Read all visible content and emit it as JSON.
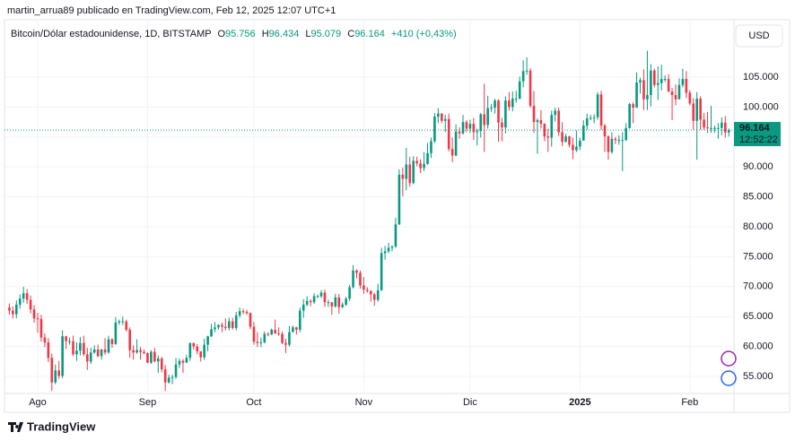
{
  "chart_data": {
    "type": "candlestick",
    "title": "martin_arrua89 publicado en TradingView.com, Feb 12, 2025 12:07 UTC+1",
    "symbol": "Bitcoin/Dólar estadounidense, 1D, BITSTAMP",
    "legend_keys": [
      "O",
      "H",
      "L",
      "C"
    ],
    "legend_values": [
      "95.756",
      "96.434",
      "95.079",
      "96.164",
      "+410 (+0,43%)"
    ],
    "currency": "USD",
    "countdown": "12:52:22",
    "brand": "TradingView",
    "up_color": "#089981",
    "down_color": "#f23645",
    "grid": true,
    "categories": [
      null,
      null,
      null,
      null,
      null,
      null,
      null,
      null,
      "Ago",
      null,
      null,
      null,
      null,
      null,
      null,
      null,
      null,
      null,
      null,
      null,
      null,
      null,
      null,
      null,
      null,
      null,
      null,
      null,
      null,
      null,
      null,
      null,
      null,
      null,
      null,
      null,
      null,
      null,
      null,
      "Sep",
      null,
      null,
      null,
      null,
      null,
      null,
      null,
      null,
      null,
      null,
      null,
      null,
      null,
      null,
      null,
      null,
      null,
      null,
      null,
      null,
      null,
      null,
      null,
      null,
      null,
      null,
      null,
      null,
      null,
      "Oct",
      null,
      null,
      null,
      null,
      null,
      null,
      null,
      null,
      null,
      null,
      null,
      null,
      null,
      null,
      null,
      null,
      null,
      null,
      null,
      null,
      null,
      null,
      null,
      null,
      null,
      null,
      null,
      null,
      null,
      null,
      "Nov",
      null,
      null,
      null,
      null,
      null,
      null,
      null,
      null,
      null,
      null,
      null,
      null,
      null,
      null,
      null,
      null,
      null,
      null,
      null,
      null,
      null,
      null,
      null,
      null,
      null,
      null,
      null,
      null,
      null,
      "Dic",
      null,
      null,
      null,
      null,
      null,
      null,
      null,
      null,
      null,
      null,
      null,
      null,
      null,
      null,
      null,
      null,
      null,
      null,
      null,
      null,
      null,
      null,
      null,
      null,
      null,
      null,
      null,
      null,
      null,
      null,
      "2025",
      null,
      null,
      null,
      null,
      null,
      null,
      null,
      null,
      null,
      null,
      null,
      null,
      null,
      null,
      null,
      null,
      null,
      null,
      null,
      null,
      null,
      null,
      null,
      null,
      null,
      null,
      null,
      null,
      null,
      null,
      "Feb",
      null,
      null,
      null,
      null,
      null,
      null,
      null,
      null,
      null,
      null,
      null
    ],
    "open": [
      66500,
      66000,
      65400,
      67000,
      68000,
      68900,
      67800,
      66200,
      64700,
      64600,
      61500,
      60700,
      58100,
      54000,
      56000,
      55100,
      61700,
      60900,
      60900,
      58700,
      59300,
      60600,
      58700,
      57500,
      59000,
      59500,
      58400,
      59500,
      59000,
      61200,
      60400,
      64000,
      64200,
      64200,
      62800,
      59400,
      59000,
      59400,
      59100,
      58900,
      57300,
      59100,
      57500,
      58000,
      56200,
      54000,
      54800,
      54900,
      57000,
      57600,
      57300,
      58100,
      60600,
      60000,
      59200,
      58200,
      60300,
      61700,
      62900,
      63200,
      63600,
      63300,
      63100,
      64200,
      63100,
      65200,
      65900,
      65800,
      65600,
      63300,
      60800,
      60600,
      60700,
      62100,
      62000,
      62800,
      62200,
      62100,
      60600,
      60300,
      62400,
      63200,
      62800,
      66000,
      67000,
      67600,
      67400,
      68400,
      68400,
      69000,
      67400,
      67400,
      66700,
      68200,
      66600,
      67000,
      68000,
      69900,
      72700,
      72300,
      70200,
      69500,
      69300,
      68700,
      67800,
      69400,
      75600,
      75900,
      76500,
      76700,
      80400,
      88700,
      88000,
      90400,
      87300,
      91000,
      90600,
      89800,
      90500,
      92300,
      94300,
      98400,
      98900,
      97700,
      98000,
      93000,
      91900,
      95900,
      95600,
      97500,
      96400,
      97200,
      95800,
      96000,
      98800,
      97000,
      99800,
      99900,
      101100,
      97400,
      96600,
      101100,
      100000,
      101400,
      101400,
      104300,
      106000,
      106100,
      100200,
      97500,
      97800,
      97200,
      95100,
      94900,
      98700,
      99400,
      95800,
      94200,
      95100,
      93700,
      92800,
      93400,
      94400,
      96900,
      98100,
      98200,
      98300,
      102100,
      96900,
      95100,
      92500,
      94700,
      94500,
      94500,
      94500,
      96500,
      100500,
      99900,
      104100,
      104500,
      101300,
      102000,
      106100,
      103700,
      104000,
      104700,
      104700,
      102600,
      102000,
      101300,
      103700,
      104700,
      102400,
      100600,
      97700,
      101400,
      97900,
      96600,
      96500,
      96500,
      96500,
      96500,
      97400,
      95756
    ],
    "high": [
      67200,
      66700,
      67700,
      68700,
      70000,
      69600,
      68500,
      66900,
      65600,
      65300,
      62200,
      61400,
      58800,
      57000,
      57600,
      62700,
      61800,
      61500,
      61800,
      60700,
      61600,
      61800,
      59800,
      59800,
      60200,
      60300,
      59600,
      61400,
      61800,
      61400,
      64900,
      64500,
      65000,
      64500,
      63200,
      60200,
      61200,
      59900,
      59500,
      59000,
      59400,
      59800,
      58500,
      58300,
      56900,
      55300,
      55300,
      58100,
      58000,
      57900,
      58600,
      60600,
      60600,
      60400,
      59200,
      61300,
      61800,
      63800,
      64100,
      63700,
      64000,
      64700,
      64800,
      64800,
      65800,
      66500,
      66300,
      66100,
      65700,
      64100,
      62400,
      61500,
      62500,
      62400,
      63000,
      64500,
      63200,
      62500,
      61300,
      63400,
      63500,
      63300,
      66500,
      67900,
      68400,
      67900,
      68900,
      68700,
      69400,
      69500,
      67800,
      67400,
      68800,
      68800,
      67400,
      68300,
      70300,
      73600,
      72900,
      72700,
      71600,
      69900,
      69400,
      69000,
      70500,
      76500,
      76800,
      77300,
      76900,
      81500,
      89600,
      89900,
      93200,
      91700,
      91800,
      91700,
      91300,
      92500,
      94000,
      94900,
      99000,
      99800,
      99000,
      98700,
      98900,
      94900,
      97100,
      96600,
      98700,
      97800,
      97900,
      98200,
      96400,
      99000,
      103900,
      101900,
      100500,
      101400,
      101300,
      98200,
      101800,
      102500,
      102600,
      102700,
      105100,
      107800,
      108300,
      106500,
      102700,
      98100,
      99500,
      97300,
      96400,
      99400,
      99900,
      99900,
      97500,
      95500,
      95200,
      94900,
      96100,
      94900,
      97800,
      98900,
      98700,
      98800,
      102500,
      102700,
      97200,
      95300,
      95800,
      95000,
      95300,
      95800,
      97300,
      100700,
      100800,
      105800,
      104900,
      106300,
      109400,
      107200,
      106400,
      106800,
      107100,
      105300,
      105500,
      103200,
      103800,
      104800,
      106400,
      106000,
      102800,
      101500,
      102500,
      101800,
      99000,
      99200,
      100200,
      96900,
      97300,
      98300,
      98500,
      96434
    ],
    "low": [
      65300,
      64700,
      64700,
      66300,
      67300,
      67100,
      65500,
      64000,
      62300,
      60800,
      59900,
      57400,
      52600,
      53700,
      54600,
      54700,
      59600,
      60300,
      58400,
      57600,
      58500,
      58400,
      56100,
      57100,
      58800,
      58200,
      57800,
      58600,
      58800,
      59800,
      60300,
      63600,
      63600,
      62500,
      58100,
      57800,
      58800,
      57800,
      58700,
      57200,
      57100,
      57400,
      55600,
      55700,
      52600,
      53800,
      53700,
      54600,
      56400,
      55600,
      57300,
      57600,
      59500,
      58700,
      57500,
      57800,
      59200,
      61600,
      62400,
      62800,
      62400,
      62700,
      62700,
      62800,
      62700,
      64800,
      65400,
      65300,
      62900,
      60300,
      59900,
      59900,
      60500,
      61700,
      61900,
      62100,
      61800,
      60400,
      58900,
      60000,
      62400,
      62000,
      62400,
      64800,
      66700,
      66700,
      67100,
      68100,
      68100,
      66600,
      66600,
      65300,
      66500,
      65500,
      66400,
      66800,
      67600,
      69700,
      71400,
      69700,
      68800,
      69000,
      67500,
      66800,
      67500,
      69300,
      74500,
      75600,
      75900,
      76500,
      80300,
      85100,
      86100,
      86700,
      87100,
      90100,
      89000,
      89300,
      90400,
      91500,
      94000,
      97300,
      97300,
      95800,
      92600,
      90800,
      91800,
      94700,
      95400,
      95800,
      95700,
      94500,
      93600,
      94900,
      92500,
      96400,
      99200,
      98900,
      94200,
      94300,
      95600,
      99400,
      99300,
      100700,
      101300,
      103300,
      105400,
      99900,
      95700,
      92200,
      96400,
      94300,
      92500,
      93400,
      97600,
      95200,
      93500,
      94100,
      93300,
      91300,
      92500,
      92800,
      94400,
      96200,
      97800,
      97300,
      97900,
      96200,
      92500,
      91200,
      92200,
      93800,
      93700,
      89300,
      94300,
      96400,
      97300,
      99900,
      102300,
      99500,
      99500,
      100100,
      103300,
      101200,
      102800,
      104200,
      102500,
      97800,
      100300,
      101300,
      103300,
      101500,
      100300,
      96200,
      91200,
      96200,
      96200,
      95700,
      95700,
      95700,
      94700,
      95300,
      94900,
      95079
    ],
    "close": [
      66000,
      65400,
      67000,
      68000,
      68900,
      67800,
      66200,
      64700,
      64600,
      61500,
      60700,
      58100,
      54000,
      56000,
      55100,
      61700,
      60900,
      60900,
      58700,
      59300,
      60600,
      58700,
      57500,
      59000,
      59500,
      58400,
      59500,
      59000,
      61200,
      60400,
      64000,
      64200,
      64200,
      62800,
      59400,
      59000,
      59400,
      59100,
      58900,
      57300,
      59100,
      57500,
      58000,
      56200,
      54000,
      54800,
      54900,
      57000,
      57600,
      57300,
      58100,
      60600,
      60000,
      59200,
      58200,
      60300,
      61700,
      62900,
      63200,
      63600,
      63300,
      63100,
      64200,
      63100,
      65200,
      65900,
      65800,
      65600,
      63300,
      60800,
      60600,
      60700,
      62100,
      62000,
      62800,
      62200,
      62100,
      60600,
      60300,
      62400,
      63200,
      62800,
      66000,
      67000,
      67600,
      67400,
      68400,
      68400,
      69000,
      67400,
      67400,
      66700,
      68200,
      66600,
      67000,
      68000,
      69900,
      72700,
      72300,
      70200,
      69500,
      69300,
      68700,
      67800,
      69400,
      75600,
      75900,
      76500,
      76700,
      80400,
      88700,
      88000,
      90400,
      87300,
      91000,
      90600,
      89800,
      90500,
      92300,
      94300,
      98400,
      98900,
      97700,
      98000,
      93000,
      91900,
      95900,
      95600,
      97500,
      96400,
      97200,
      95800,
      96000,
      98800,
      97000,
      99800,
      99900,
      101100,
      97400,
      96600,
      101100,
      100000,
      101400,
      101400,
      104300,
      106000,
      106100,
      100200,
      97500,
      97800,
      97200,
      95100,
      94900,
      98700,
      99400,
      95800,
      94200,
      95100,
      93700,
      92800,
      93400,
      94400,
      96900,
      98100,
      98200,
      98300,
      102100,
      96900,
      95100,
      92500,
      94700,
      94500,
      94500,
      94500,
      96500,
      100500,
      99900,
      104100,
      104500,
      101300,
      102000,
      106100,
      103700,
      104000,
      104700,
      104700,
      102600,
      102000,
      101300,
      103700,
      104700,
      102400,
      100600,
      97700,
      101400,
      97900,
      96600,
      96500,
      96500,
      96500,
      96500,
      97400,
      95756,
      96164
    ],
    "ylim": [
      52600,
      110400
    ],
    "yticks": [
      {
        "value": 55000,
        "label": "55.000"
      },
      {
        "value": 60000,
        "label": "60.000"
      },
      {
        "value": 65000,
        "label": "65.000"
      },
      {
        "value": 70000,
        "label": "70.000"
      },
      {
        "value": 75000,
        "label": "75.000"
      },
      {
        "value": 80000,
        "label": "80.000"
      },
      {
        "value": 85000,
        "label": "85.000"
      },
      {
        "value": 90000,
        "label": "90.000"
      },
      {
        "value": 95000,
        "label": "95.000"
      },
      {
        "value": 100000,
        "label": "100.000"
      },
      {
        "value": 105000,
        "label": "105.000"
      }
    ]
  }
}
